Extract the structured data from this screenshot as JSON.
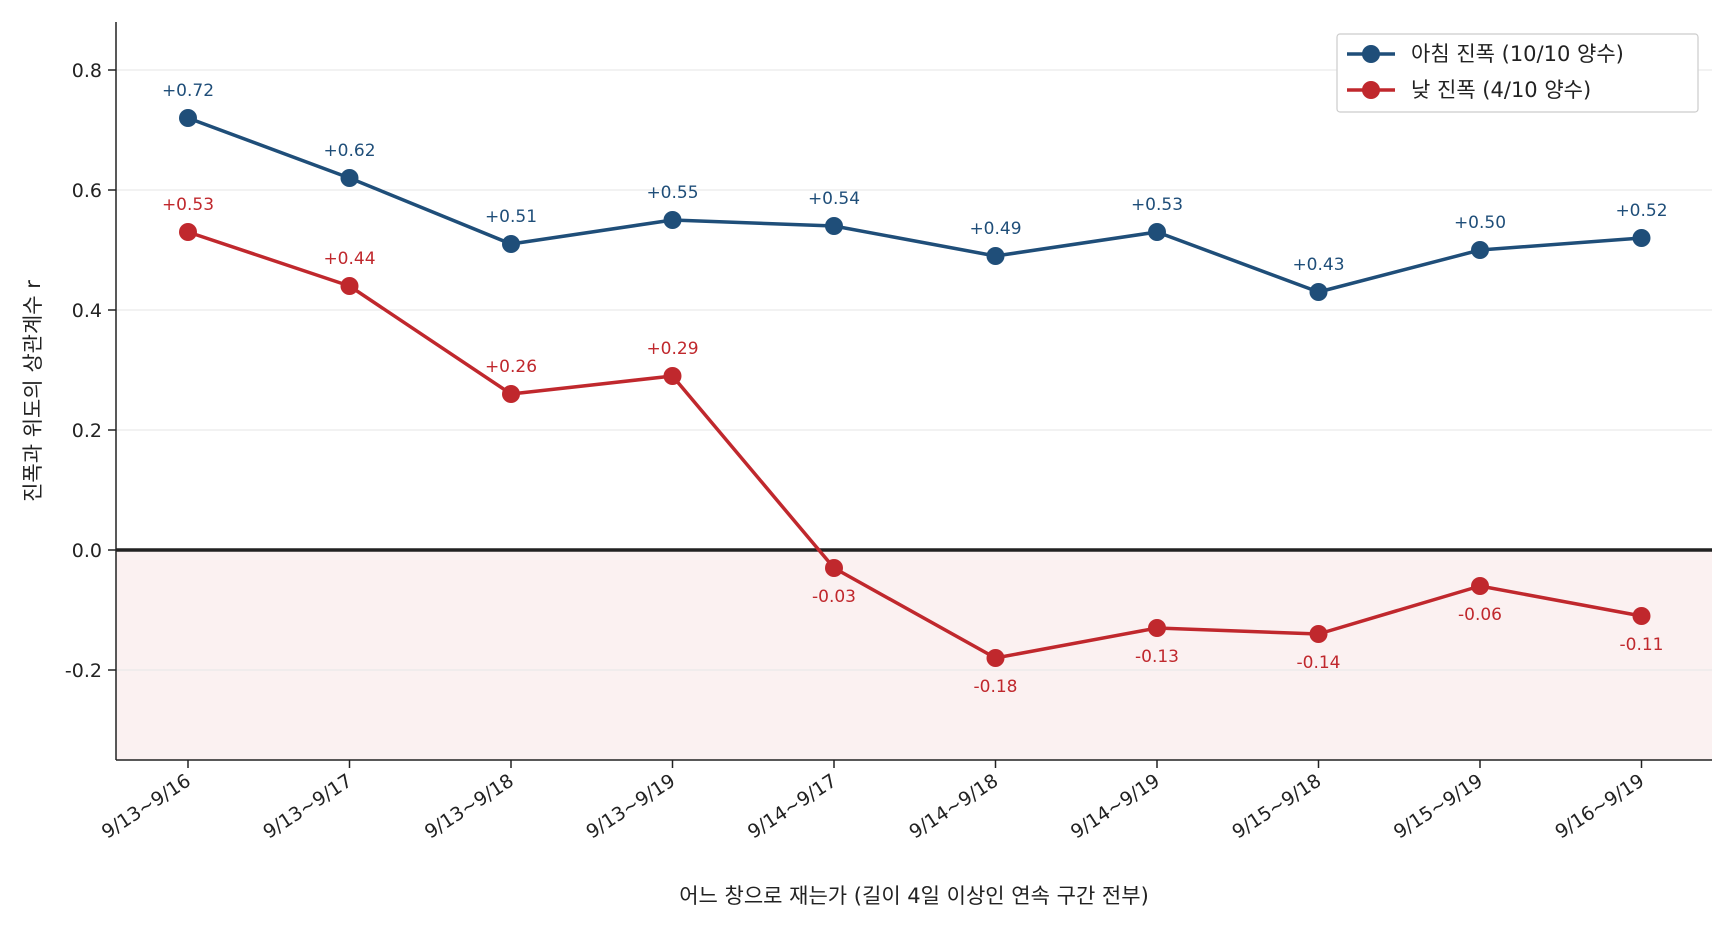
{
  "chart_data": {
    "type": "line",
    "title": "",
    "xlabel": "어느 창으로 재는가 (길이 4일 이상인 연속 구간 전부)",
    "ylabel": "진폭과 위도의 상관계수  r",
    "categories": [
      "9/13~9/16",
      "9/13~9/17",
      "9/13~9/18",
      "9/13~9/19",
      "9/14~9/17",
      "9/14~9/18",
      "9/14~9/19",
      "9/15~9/18",
      "9/15~9/19",
      "9/16~9/19"
    ],
    "ylim": [
      -0.35,
      0.88
    ],
    "yticks": [
      -0.2,
      0.0,
      0.2,
      0.4,
      0.6,
      0.8
    ],
    "ytick_labels": [
      "-0.2",
      "0.0",
      "0.2",
      "0.4",
      "0.6",
      "0.8"
    ],
    "grid": "horizontal",
    "legend_position": "top-right",
    "negative_region_shaded": true,
    "series": [
      {
        "name": "아침 진폭  (10/10 양수)",
        "color": "#1f4e79",
        "values": [
          0.72,
          0.62,
          0.51,
          0.55,
          0.54,
          0.49,
          0.53,
          0.43,
          0.5,
          0.52
        ],
        "labels": [
          "+0.72",
          "+0.62",
          "+0.51",
          "+0.55",
          "+0.54",
          "+0.49",
          "+0.53",
          "+0.43",
          "+0.50",
          "+0.52"
        ]
      },
      {
        "name": "낮 진폭  (4/10 양수)",
        "color": "#c0282d",
        "values": [
          0.53,
          0.44,
          0.26,
          0.29,
          -0.03,
          -0.18,
          -0.13,
          -0.14,
          -0.06,
          -0.11
        ],
        "labels": [
          "+0.53",
          "+0.44",
          "+0.26",
          "+0.29",
          "-0.03",
          "-0.18",
          "-0.13",
          "-0.14",
          "-0.06",
          "-0.11"
        ]
      }
    ]
  }
}
